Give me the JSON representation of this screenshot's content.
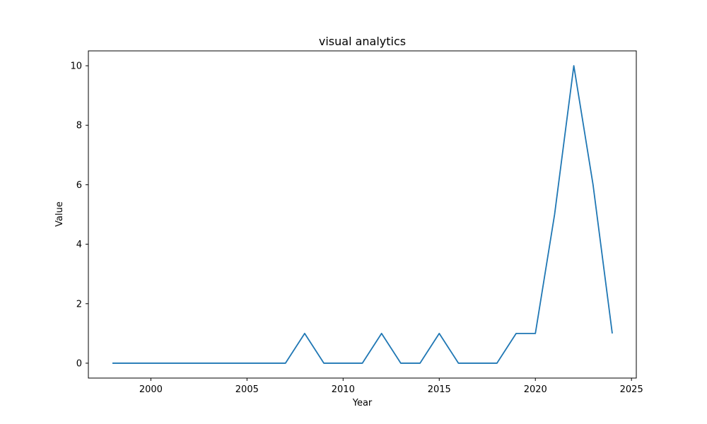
{
  "chart_data": {
    "type": "line",
    "title": "visual analytics",
    "xlabel": "Year",
    "ylabel": "Value",
    "xlim": [
      1996.75,
      2025.25
    ],
    "ylim": [
      -0.5,
      10.5
    ],
    "xticks": [
      2000,
      2005,
      2010,
      2015,
      2020,
      2025
    ],
    "yticks": [
      0,
      2,
      4,
      6,
      8,
      10
    ],
    "grid": false,
    "legend": "none",
    "x": [
      1998,
      1999,
      2000,
      2001,
      2002,
      2003,
      2004,
      2005,
      2006,
      2007,
      2008,
      2009,
      2010,
      2011,
      2012,
      2013,
      2014,
      2015,
      2016,
      2017,
      2018,
      2019,
      2020,
      2021,
      2022,
      2023,
      2024
    ],
    "series": [
      {
        "color": "#1f77b4",
        "values": [
          0,
          0,
          0,
          0,
          0,
          0,
          0,
          0,
          0,
          0,
          1,
          0,
          0,
          0,
          1,
          0,
          0,
          1,
          0,
          0,
          0,
          1,
          1,
          5,
          10,
          6,
          1
        ]
      }
    ]
  }
}
